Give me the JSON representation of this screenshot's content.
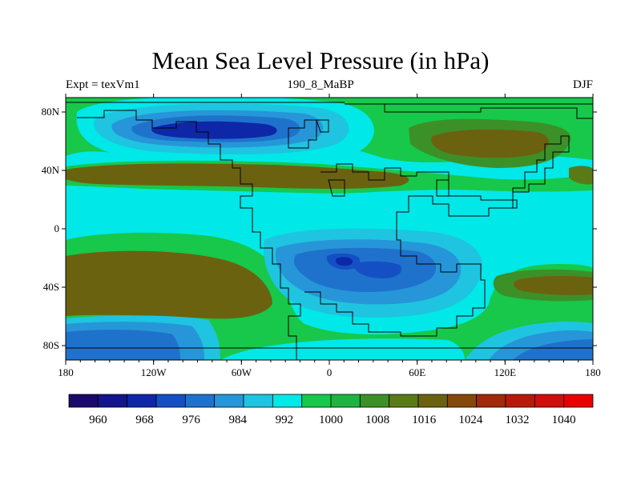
{
  "title": "Mean Sea Level Pressure (in hPa)",
  "left_annotation": "Expt = texVm1",
  "center_annotation": "190_8_MaBP",
  "right_annotation": "DJF",
  "x_tick_labels": [
    "180",
    "120W",
    "60W",
    "0",
    "60E",
    "120E",
    "180"
  ],
  "y_tick_labels": [
    "80N",
    "40N",
    "0",
    "40S",
    "80S"
  ],
  "colorbar": {
    "labels": [
      "960",
      "968",
      "976",
      "984",
      "992",
      "1000",
      "1008",
      "1016",
      "1024",
      "1032",
      "1040"
    ],
    "colors": [
      "#1b0a6b",
      "#14148c",
      "#0d27a8",
      "#1450c4",
      "#1f72cc",
      "#2696d8",
      "#1fc4e0",
      "#00e8e8",
      "#17c84a",
      "#1fb440",
      "#3c9028",
      "#5a7a18",
      "#6b6210",
      "#85480a",
      "#a02a0a",
      "#b81a0a",
      "#d00e0a",
      "#e80000"
    ]
  },
  "colors": {
    "cyan": "#00e8e8",
    "light_blue": "#1fc4e0",
    "mid_blue": "#2696d8",
    "blue": "#1f72cc",
    "deep_blue": "#1450c4",
    "darkest_blue": "#0d27a8",
    "green": "#17c84a",
    "olive_green": "#3c9028",
    "olive": "#5a7a18",
    "dark_olive": "#6b6210"
  }
}
